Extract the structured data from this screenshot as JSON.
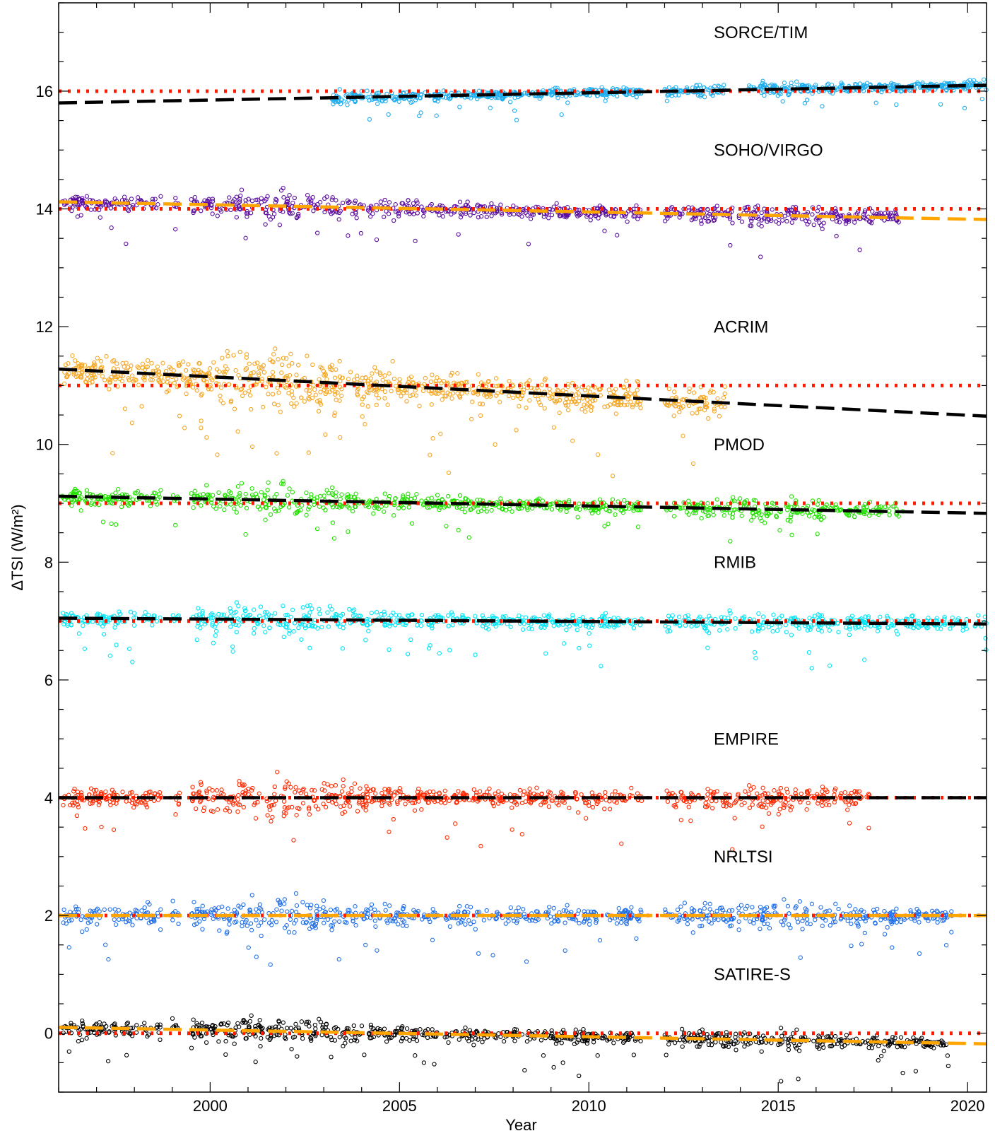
{
  "chart_data": {
    "type": "scatter",
    "xlabel": "Year",
    "ylabel": "ΔTSI (W/m²)",
    "xlim": [
      1996.0,
      2020.5
    ],
    "ylim": [
      -1.0,
      17.5
    ],
    "x_ticks": [
      2000,
      2005,
      2010,
      2015,
      2020
    ],
    "y_ticks": [
      0,
      2,
      4,
      6,
      8,
      10,
      12,
      14,
      16
    ],
    "grid": false,
    "note": "",
    "series": [
      {
        "name": "SORCE/TIM",
        "color": "#1eaef0",
        "offset": 16,
        "start": 2003.2,
        "end": 2020.5,
        "gaps": [
          [
            2011.4,
            2012.0
          ],
          [
            2013.6,
            2014.2
          ]
        ],
        "spread": 0.1,
        "trend": {
          "color": "#000000",
          "from": [
            1996.0,
            15.8
          ],
          "to": [
            2020.5,
            16.1
          ]
        },
        "reference_color": "#ff1a00"
      },
      {
        "name": "SOHO/VIRGO",
        "color": "#5a0ca0",
        "offset": 14,
        "start": 1996.1,
        "end": 2018.3,
        "gaps": [
          [
            1998.7,
            1999.0
          ],
          [
            1999.2,
            1999.5
          ],
          [
            2011.4,
            2012.0
          ]
        ],
        "spread": 0.16,
        "trend": {
          "color": "#ffa500",
          "from": [
            1996.0,
            14.12
          ],
          "to": [
            2020.5,
            13.82
          ]
        },
        "reference_color": "#ff1a00"
      },
      {
        "name": "ACRIM",
        "color": "#f5a623",
        "offset": 11,
        "start": 1996.1,
        "end": 2013.6,
        "gaps": [
          [
            2011.4,
            2012.0
          ]
        ],
        "spread": 0.32,
        "trend": {
          "color": "#000000",
          "from": [
            1996.0,
            11.28
          ],
          "to": [
            2020.5,
            10.48
          ]
        },
        "reference_color": "#ff1a00"
      },
      {
        "name": "PMOD",
        "color": "#22e000",
        "offset": 9,
        "start": 1996.1,
        "end": 2018.3,
        "gaps": [
          [
            1998.7,
            1999.0
          ],
          [
            1999.2,
            1999.5
          ],
          [
            2011.4,
            2012.0
          ]
        ],
        "spread": 0.17,
        "trend": {
          "color": "#000000",
          "from": [
            1996.0,
            9.12
          ],
          "to": [
            2020.5,
            8.83
          ]
        },
        "reference_color": "#ff1a00"
      },
      {
        "name": "RMIB",
        "color": "#00e5f5",
        "offset": 7,
        "start": 1996.1,
        "end": 2020.5,
        "gaps": [
          [
            1998.7,
            1999.0
          ],
          [
            1999.2,
            1999.5
          ],
          [
            2011.4,
            2012.0
          ]
        ],
        "spread": 0.17,
        "trend": {
          "color": "#000000",
          "from": [
            1996.0,
            7.05
          ],
          "to": [
            2020.5,
            6.95
          ]
        },
        "reference_color": "#ff1a00"
      },
      {
        "name": "EMPIRE",
        "color": "#ff2a00",
        "offset": 4,
        "start": 1996.1,
        "end": 2017.4,
        "gaps": [
          [
            1998.7,
            1999.0
          ],
          [
            1999.2,
            1999.5
          ],
          [
            2011.4,
            2012.0
          ]
        ],
        "spread": 0.2,
        "trend": {
          "color": "#000000",
          "from": [
            1996.0,
            4.0
          ],
          "to": [
            2020.5,
            4.0
          ]
        },
        "reference_color": "#ff1a00"
      },
      {
        "name": "NRLTSI",
        "color": "#1f6ee8",
        "offset": 2,
        "start": 1996.1,
        "end": 2019.6,
        "gaps": [
          [
            1998.7,
            1999.0
          ],
          [
            1999.2,
            1999.5
          ],
          [
            2011.4,
            2012.0
          ]
        ],
        "spread": 0.2,
        "trend": {
          "color": "#ffa500",
          "from": [
            1996.0,
            2.0
          ],
          "to": [
            2020.5,
            2.0
          ]
        },
        "reference_color": "#ff1a00"
      },
      {
        "name": "SATIRE-S",
        "color": "#000000",
        "offset": 0,
        "start": 1996.1,
        "end": 2019.5,
        "gaps": [
          [
            1998.7,
            1999.0
          ],
          [
            1999.2,
            1999.5
          ],
          [
            2011.4,
            2012.0
          ]
        ],
        "spread": 0.15,
        "trend": {
          "color": "#ffa500",
          "from": [
            1996.0,
            0.1
          ],
          "to": [
            2020.5,
            -0.18
          ]
        },
        "reference_color": "#ff1a00"
      }
    ]
  }
}
